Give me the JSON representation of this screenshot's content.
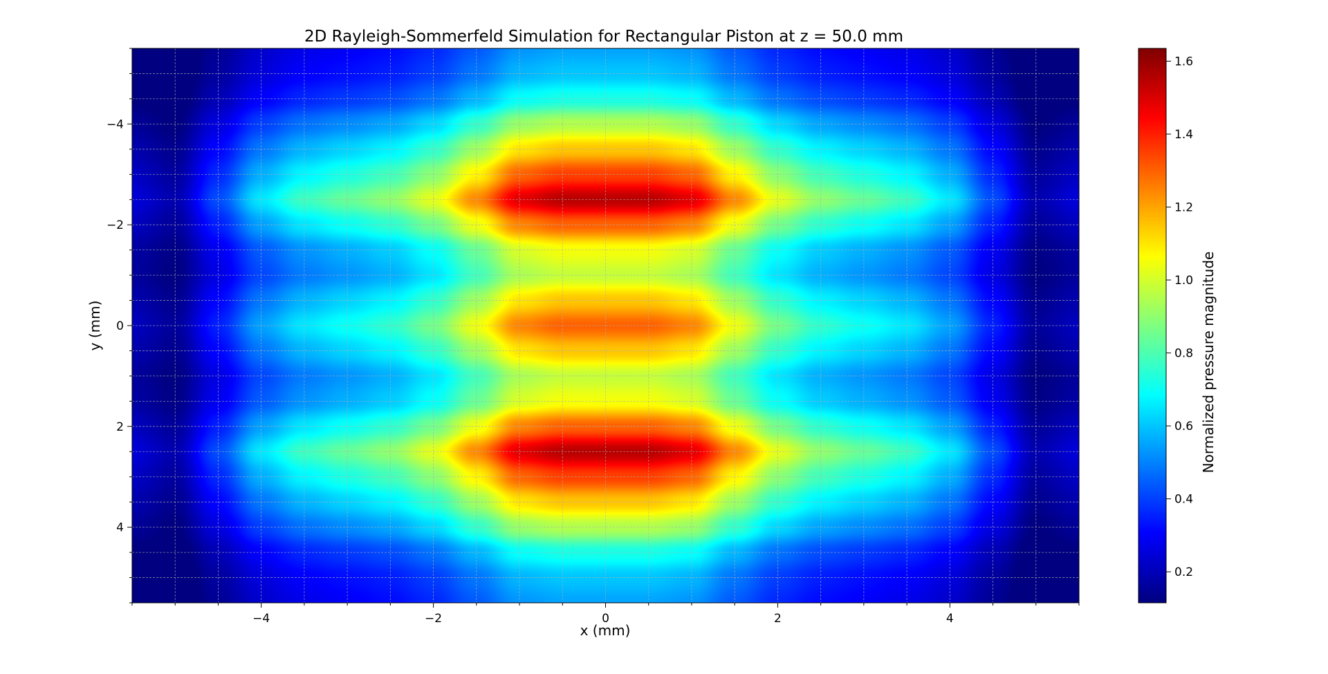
{
  "chart_data": {
    "type": "heatmap",
    "title": "2D Rayleigh-Sommerfeld Simulation for Rectangular Piston at z = 50.0 mm",
    "xlabel": "x (mm)",
    "ylabel": "y (mm)",
    "xlim": [
      -5.5,
      5.5
    ],
    "ylim": [
      5.5,
      -5.5
    ],
    "y_inverted": true,
    "xticks": [
      -4,
      -2,
      0,
      2,
      4
    ],
    "yticks": [
      -4,
      -2,
      0,
      2,
      4
    ],
    "minor_step": 0.5,
    "grid": true,
    "colormap": "jet",
    "colorbar": {
      "label": "Normalized pressure magnitude",
      "vmin": 0.115,
      "vmax": 1.635,
      "ticks": [
        0.2,
        0.4,
        0.6,
        0.8,
        1.0,
        1.2,
        1.4,
        1.6
      ],
      "tick_labels": [
        "0.2",
        "0.4",
        "0.6",
        "0.8",
        "1.0",
        "1.2",
        "1.4",
        "1.6"
      ]
    },
    "field": {
      "x_profile": {
        "x": [
          0,
          0.5,
          1.0,
          1.5,
          2.0,
          2.5,
          3.0,
          3.5,
          4.0,
          4.5,
          5.0,
          5.5
        ],
        "value": [
          1.0,
          1.0,
          0.96,
          0.8,
          0.66,
          0.58,
          0.54,
          0.5,
          0.42,
          0.27,
          0.12,
          0.16
        ]
      },
      "y_profile": {
        "y": [
          -5.5,
          -5.0,
          -4.5,
          -4.0,
          -3.5,
          -3.0,
          -2.5,
          -2.0,
          -1.5,
          -1.0,
          -0.5,
          0,
          0.5,
          1.0,
          1.5,
          2.0,
          2.5,
          3.0,
          3.5,
          4.0,
          4.5,
          5.0,
          5.5
        ],
        "value": [
          0.55,
          0.6,
          0.72,
          0.95,
          1.15,
          1.35,
          1.55,
          1.3,
          1.05,
          0.98,
          1.15,
          1.3,
          1.15,
          0.98,
          1.05,
          1.3,
          1.55,
          1.35,
          1.15,
          0.95,
          0.72,
          0.6,
          0.55
        ]
      }
    }
  }
}
